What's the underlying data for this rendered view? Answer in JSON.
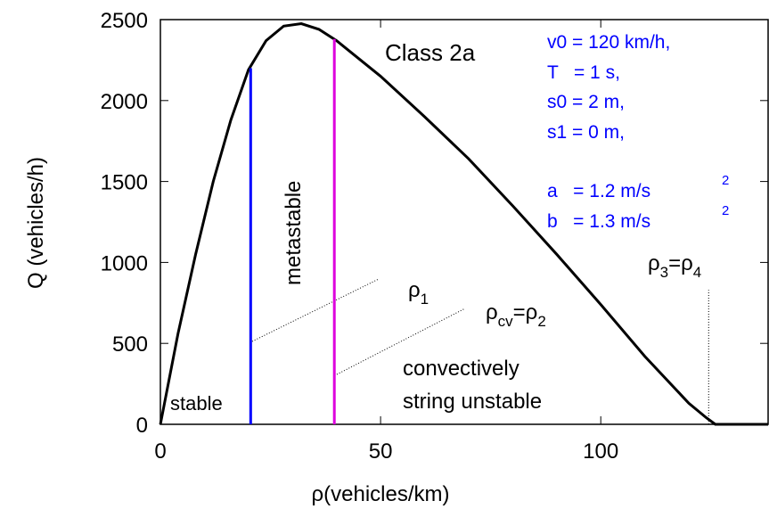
{
  "chart_data": {
    "type": "line",
    "title": "Class 2a",
    "x_label": "ρ(vehicles/km)",
    "y_label": "Q (vehicles/h)",
    "xlim": [
      0,
      138
    ],
    "ylim": [
      0,
      2500
    ],
    "xticks": [
      0,
      50,
      100
    ],
    "yticks": [
      0,
      500,
      1000,
      1500,
      2000,
      2500
    ],
    "grid": false,
    "series": [
      {
        "color": "#000000",
        "x": [
          0,
          4,
          8,
          12,
          16,
          20,
          24,
          28,
          32,
          36,
          40,
          50,
          60,
          70,
          80,
          90,
          100,
          110,
          120,
          124,
          126,
          138
        ],
        "values": [
          0,
          560,
          1050,
          1500,
          1880,
          2190,
          2370,
          2460,
          2475,
          2440,
          2370,
          2150,
          1900,
          1640,
          1350,
          1050,
          740,
          420,
          130,
          40,
          0,
          0
        ]
      },
      {
        "color": "#0000ff",
        "x": [
          20.5,
          20.5
        ],
        "values": [
          0,
          2200
        ]
      },
      {
        "color": "#dd00dd",
        "x": [
          39.5,
          39.5
        ],
        "values": [
          0,
          2380
        ]
      },
      {
        "color": "#000000",
        "dashed": true,
        "x": [
          124.5,
          124.5
        ],
        "values": [
          0,
          830
        ]
      }
    ],
    "parameters": [
      "v0 = 120 km/h,",
      "T   = 1 s,",
      "s0 = 2 m,",
      "s1 = 0 m,",
      "a   = 1.2 m/s",
      "b   = 1.3 m/s"
    ],
    "parameter_exponents": [
      "2",
      "2"
    ],
    "regions": [
      "stable",
      "metastable",
      "convectively",
      "string unstable"
    ],
    "rho1": [
      "ρ",
      "1"
    ],
    "rho_cv": [
      "ρ",
      "cv",
      "=ρ",
      "2"
    ],
    "rho_34": [
      "ρ",
      "3",
      "=ρ",
      "4"
    ]
  }
}
